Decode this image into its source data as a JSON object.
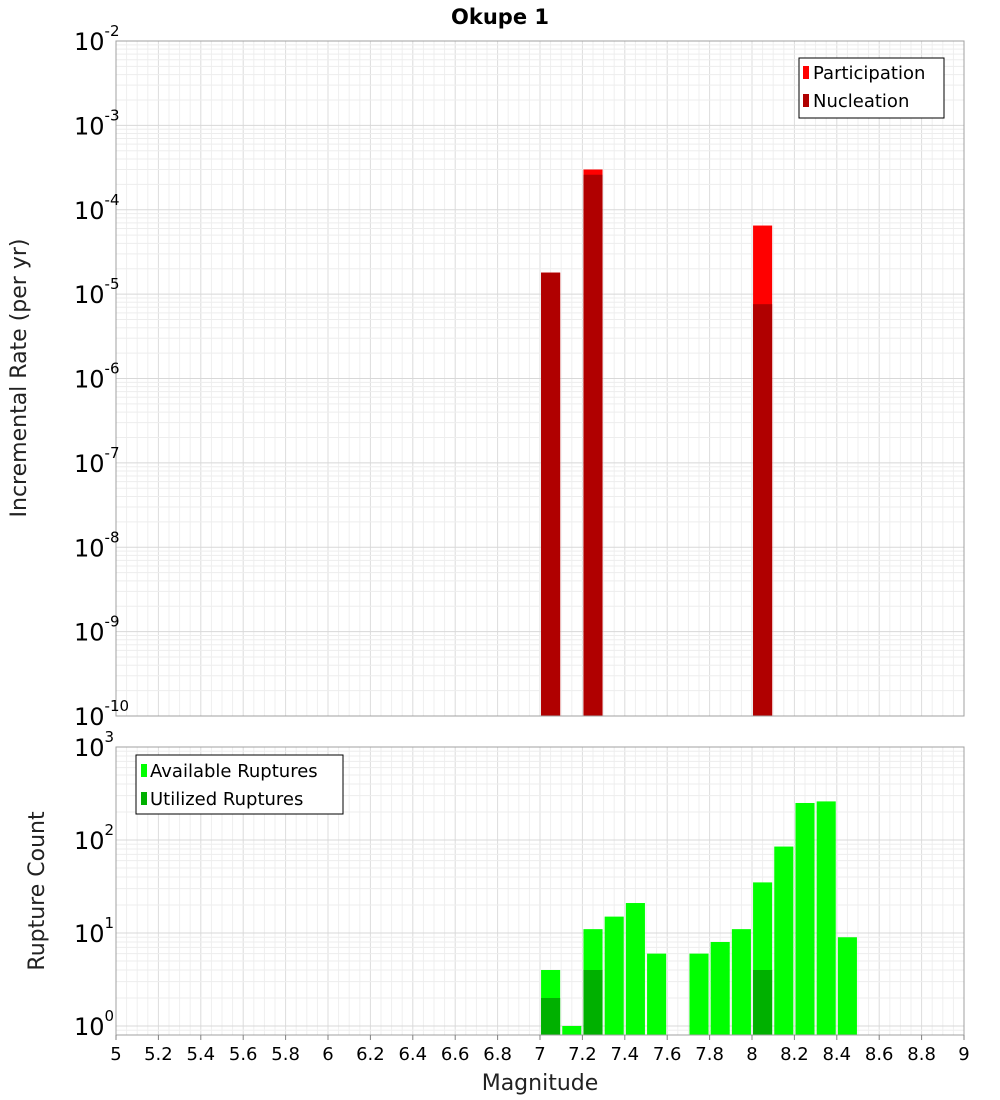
{
  "chart_data": [
    {
      "type": "bar",
      "title": "Okupe 1",
      "xlabel": "",
      "ylabel": "Incremental Rate (per yr)",
      "xlim": [
        5,
        9
      ],
      "ylim": [
        1e-10,
        0.01
      ],
      "y_scale": "log",
      "grid": true,
      "legend_position": "top-right",
      "y_tick_exponents": [
        -10,
        -9,
        -8,
        -7,
        -6,
        -5,
        -4,
        -3,
        -2
      ],
      "bar_width": 0.09,
      "series": [
        {
          "name": "Participation",
          "color": "#ff0000",
          "x": [
            7.05,
            7.25,
            8.05
          ],
          "values": [
            1.8e-05,
            0.0003,
            6.5e-05
          ]
        },
        {
          "name": "Nucleation",
          "color": "#b00000",
          "x": [
            7.05,
            7.25,
            8.05
          ],
          "values": [
            1.8e-05,
            0.00026,
            7.6e-06
          ]
        }
      ]
    },
    {
      "type": "bar",
      "title": "",
      "xlabel": "Magnitude",
      "ylabel": "Rupture Count",
      "xlim": [
        5,
        9
      ],
      "ylim": [
        0.8,
        1000
      ],
      "y_scale": "log",
      "grid": true,
      "legend_position": "top-left",
      "x_ticks": [
        "5",
        "5.2",
        "5.4",
        "5.6",
        "5.8",
        "6",
        "6.2",
        "6.4",
        "6.6",
        "6.8",
        "7",
        "7.2",
        "7.4",
        "7.6",
        "7.8",
        "8",
        "8.2",
        "8.4",
        "8.6",
        "8.8",
        "9"
      ],
      "y_tick_exponents": [
        0,
        1,
        2,
        3
      ],
      "bar_width": 0.09,
      "series": [
        {
          "name": "Available Ruptures",
          "color": "#00ff00",
          "x": [
            7.05,
            7.15,
            7.25,
            7.35,
            7.45,
            7.55,
            7.75,
            7.85,
            7.95,
            8.05,
            8.15,
            8.25,
            8.35,
            8.45
          ],
          "values": [
            4,
            1,
            11,
            15,
            21,
            6,
            6,
            8,
            11,
            35,
            85,
            250,
            260,
            9
          ]
        },
        {
          "name": "Utilized Ruptures",
          "color": "#00b000",
          "x": [
            7.05,
            7.25,
            8.05
          ],
          "values": [
            2,
            4,
            4
          ]
        }
      ]
    }
  ]
}
